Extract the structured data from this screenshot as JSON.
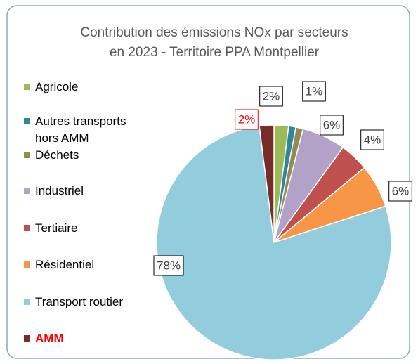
{
  "chart_data": {
    "type": "pie",
    "title": [
      "Contribution des émissions NOx par secteurs",
      "en 2023 - Territoire PPA Montpellier"
    ],
    "categories": [
      "Agricole",
      "Autres transports hors AMM",
      "Déchets",
      "Industriel",
      "Tertiaire",
      "Résidentiel",
      "Transport routier",
      "AMM"
    ],
    "values": [
      2,
      1,
      1,
      6,
      4,
      6,
      78,
      2
    ],
    "value_labels": [
      "2%",
      null,
      "1%",
      "6%",
      "4%",
      "6%",
      "78%",
      "2%"
    ],
    "colors": [
      "#9bbb59",
      "#31859c",
      "#948a54",
      "#b3a2c7",
      "#c0504d",
      "#f79646",
      "#93cddd",
      "#772c2a"
    ],
    "highlight_color": "#ff0000",
    "highlight": "AMM",
    "legend": "left"
  }
}
